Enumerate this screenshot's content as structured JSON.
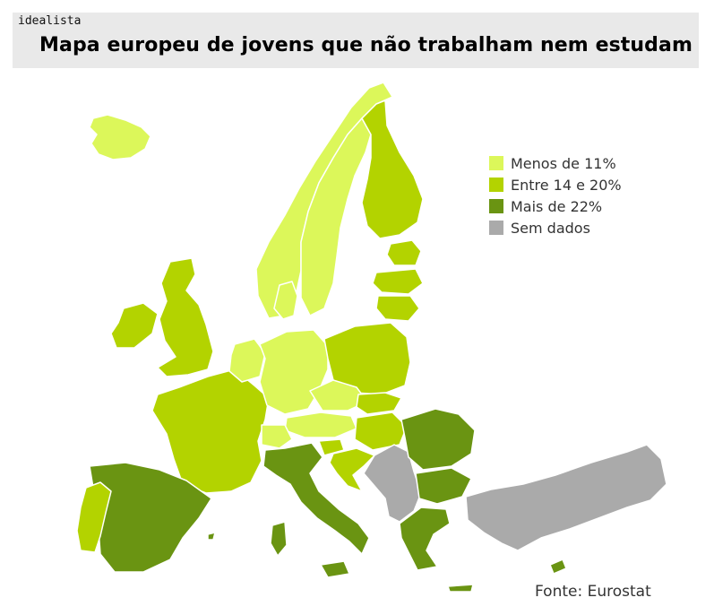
{
  "header": {
    "brand": "idealista",
    "title": "Mapa europeu de jovens que não trabalham nem estudam"
  },
  "colors": {
    "low": "#dcf75a",
    "mid": "#b3d300",
    "high": "#6a9412",
    "none": "#aaaaaa",
    "border": "#ffffff"
  },
  "legend": {
    "items": [
      {
        "label": "Menos de 11%",
        "color": "#dcf75a"
      },
      {
        "label": "Entre 14 e 20%",
        "color": "#b3d300"
      },
      {
        "label": "Mais de 22%",
        "color": "#6a9412"
      },
      {
        "label": "Sem dados",
        "color": "#aaaaaa"
      }
    ]
  },
  "source": "Fonte: Eurostat"
}
